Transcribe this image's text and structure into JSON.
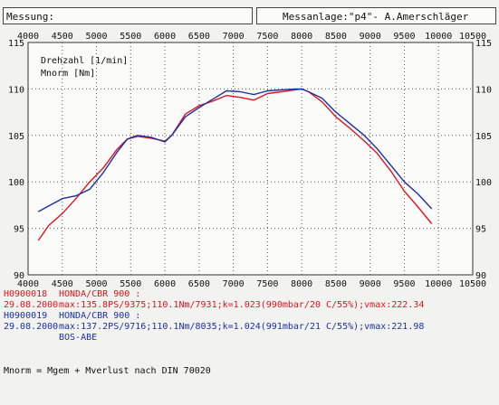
{
  "header": {
    "left": "Messung:",
    "right": "Messanlage:\"p4\"- A.Amerschläger"
  },
  "chart_data": {
    "type": "line",
    "x_ticks": [
      4000,
      4500,
      5000,
      5500,
      6000,
      6500,
      7000,
      7500,
      8000,
      8500,
      9000,
      9500,
      10000,
      10500
    ],
    "y_ticks": [
      90,
      95,
      100,
      105,
      110,
      115
    ],
    "xlim": [
      4000,
      10500
    ],
    "ylim": [
      90,
      115
    ],
    "grid": true,
    "annotations": [
      "Drehzahl [1/min]",
      "Mnorm [Nm]"
    ],
    "series": [
      {
        "name": "H0900018",
        "color": "#e0141e",
        "x": [
          4150,
          4300,
          4500,
          4700,
          4900,
          5100,
          5300,
          5450,
          5600,
          5800,
          6000,
          6100,
          6300,
          6500,
          6700,
          6900,
          7100,
          7300,
          7500,
          7700,
          7900,
          8000,
          8100,
          8300,
          8500,
          8700,
          8900,
          9100,
          9300,
          9500,
          9700,
          9900
        ],
        "values": [
          93.7,
          95.3,
          96.6,
          98.2,
          100.0,
          101.5,
          103.5,
          104.6,
          104.9,
          104.7,
          104.4,
          105.0,
          107.3,
          108.2,
          108.7,
          109.3,
          109.1,
          108.8,
          109.5,
          109.7,
          109.9,
          110.0,
          109.7,
          108.6,
          107.0,
          105.8,
          104.5,
          103.1,
          101.2,
          99.0,
          97.3,
          95.5
        ]
      },
      {
        "name": "H0900019",
        "color": "#1c2fa8",
        "x": [
          4150,
          4300,
          4500,
          4700,
          4900,
          5100,
          5300,
          5450,
          5600,
          5800,
          6000,
          6100,
          6300,
          6500,
          6700,
          6900,
          7100,
          7300,
          7500,
          7700,
          7900,
          8000,
          8100,
          8300,
          8500,
          8700,
          8900,
          9100,
          9300,
          9500,
          9700,
          9900
        ],
        "values": [
          96.8,
          97.4,
          98.2,
          98.5,
          99.2,
          101.0,
          103.2,
          104.6,
          105.0,
          104.8,
          104.3,
          105.0,
          107.0,
          108.0,
          108.9,
          109.8,
          109.7,
          109.4,
          109.8,
          109.9,
          110.0,
          110.0,
          109.7,
          109.0,
          107.5,
          106.3,
          105.1,
          103.6,
          101.8,
          100.0,
          98.7,
          97.1
        ]
      }
    ]
  },
  "legend": [
    {
      "id": "H0900018",
      "date": "29.08.2000",
      "color": "#e0141e",
      "lines": [
        "HONDA/CBR 900 :",
        "max:135.8PS/9375;110.1Nm/7931;k=1.023(990mbar/20 C/55%);vmax:222.34"
      ]
    },
    {
      "id": "H0900019",
      "date": "29.08.2000",
      "color": "#1c2fa8",
      "lines": [
        "HONDA/CBR 900 :",
        "max:137.2PS/9716;110.1Nm/8035;k=1.024(991mbar/21 C/55%);vmax:221.98",
        "BOS-ABE"
      ]
    }
  ],
  "footnote": "Mnorm = Mgem + Mverlust nach DIN 70020"
}
